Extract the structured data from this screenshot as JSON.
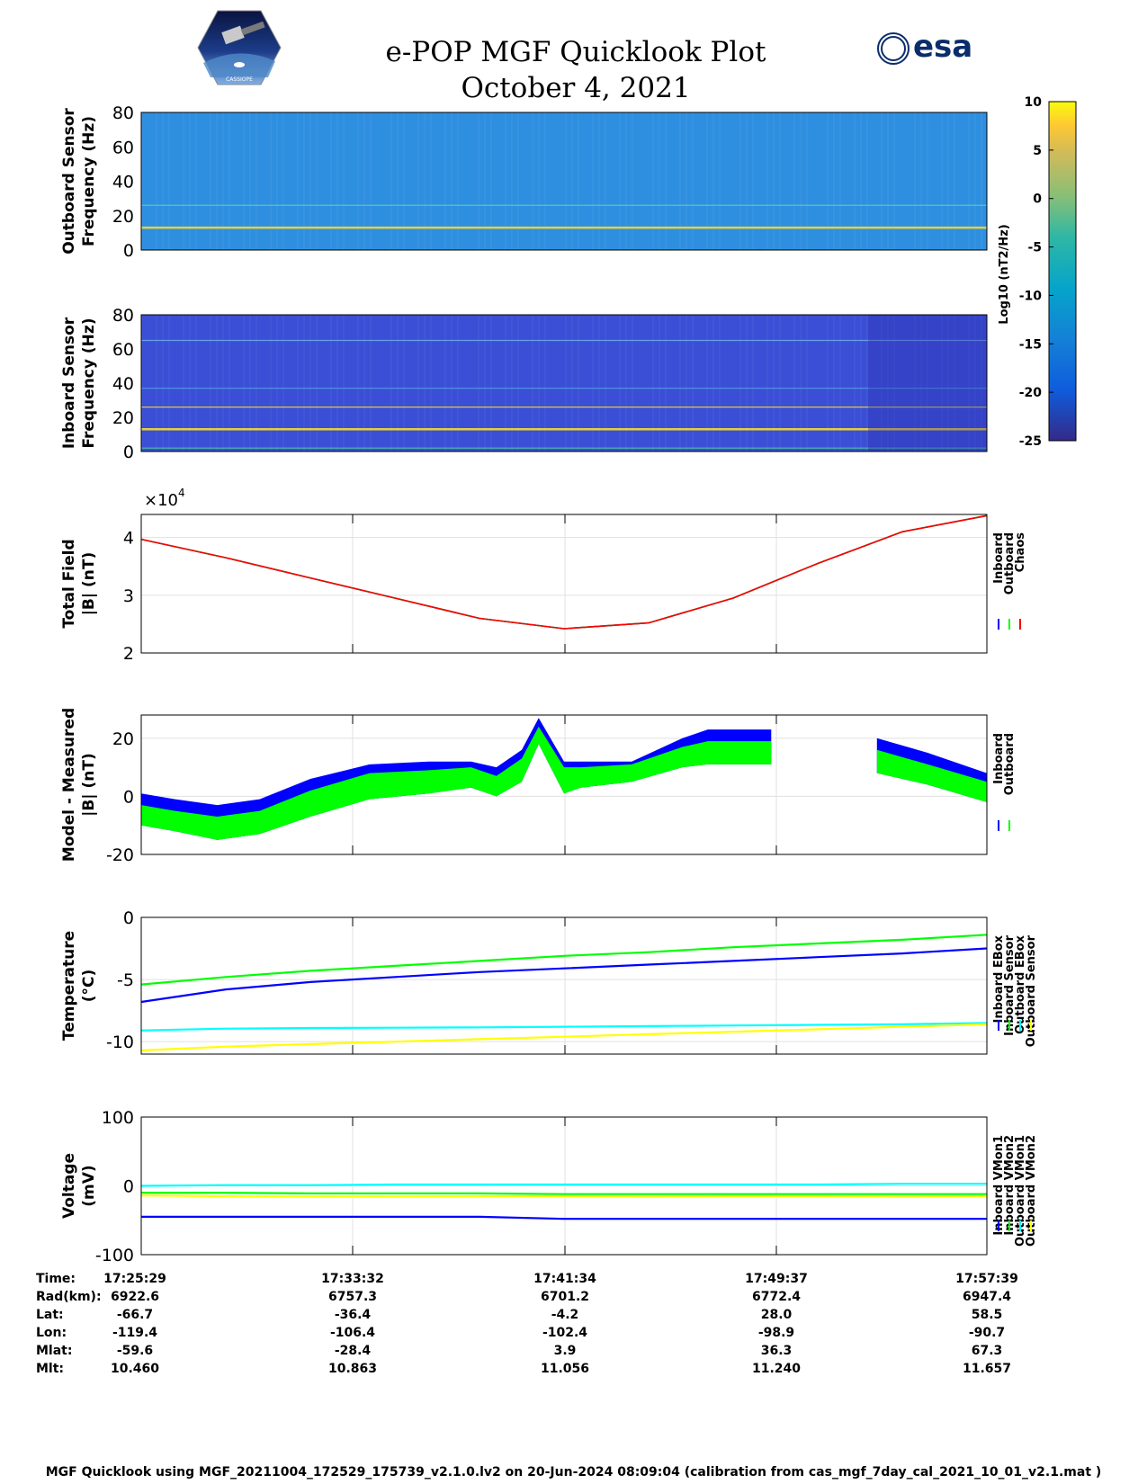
{
  "header": {
    "title_line1": "e-POP MGF Quicklook Plot",
    "title_line2": "October 4, 2021",
    "mission_logo_text": "CASSIOPE",
    "agency_logo_text": "esa"
  },
  "colorbar": {
    "label": "Log10 (nT2/Hz)",
    "ticks": [
      "10",
      "5",
      "0",
      "-5",
      "-10",
      "-15",
      "-20",
      "-25"
    ],
    "range": [
      -25,
      10
    ]
  },
  "footer": {
    "text": "MGF Quicklook using MGF_20211004_172529_175739_v2.1.0.lv2 on 20-Jun-2024 08:09:04 (calibration from cas_mgf_7day_cal_2021_10_01_v2.1.mat )"
  },
  "table": {
    "rows": [
      {
        "label": "Time:",
        "values": [
          "17:25:29",
          "17:33:32",
          "17:41:34",
          "17:49:37",
          "17:57:39"
        ]
      },
      {
        "label": "Rad(km):",
        "values": [
          "6922.6",
          "6757.3",
          "6701.2",
          "6772.4",
          "6947.4"
        ]
      },
      {
        "label": "Lat:",
        "values": [
          "-66.7",
          "-36.4",
          "-4.2",
          "28.0",
          "58.5"
        ]
      },
      {
        "label": "Lon:",
        "values": [
          "-119.4",
          "-106.4",
          "-102.4",
          "-98.9",
          "-90.7"
        ]
      },
      {
        "label": "Mlat:",
        "values": [
          "-59.6",
          "-28.4",
          "3.9",
          "36.3",
          "67.3"
        ]
      },
      {
        "label": "Mlt:",
        "values": [
          "10.460",
          "10.863",
          "11.056",
          "11.240",
          "11.657"
        ]
      }
    ]
  },
  "chart_data": [
    {
      "type": "heatmap",
      "ylabel": "Outboard Sensor\nFrequency (Hz)",
      "yticks": [
        "80",
        "60",
        "40",
        "20",
        "0"
      ],
      "ylim": [
        0,
        80
      ],
      "background": "#2e8fe0",
      "lines_hz": [
        13,
        26
      ],
      "line_colors": [
        "#e8cf3a",
        "#5fc5a8"
      ]
    },
    {
      "type": "heatmap",
      "ylabel": "Inboard Sensor\nFrequency (Hz)",
      "yticks": [
        "80",
        "60",
        "40",
        "20",
        "0"
      ],
      "ylim": [
        0,
        80
      ],
      "background": "#3a4fd6",
      "lines_hz": [
        13,
        26,
        2,
        65,
        37
      ],
      "line_colors": [
        "#e8cf3a",
        "#d8c850",
        "#48c0a0",
        "#6aa0e8",
        "#4f9ae0"
      ]
    },
    {
      "type": "line",
      "ylabel": "Total Field\n|B| (nT)",
      "exponent": "×10^4",
      "yticks": [
        "4",
        "3",
        "2"
      ],
      "ylim": [
        2,
        4.4
      ],
      "xfrac": [
        0,
        0.1,
        0.2,
        0.3,
        0.4,
        0.5,
        0.6,
        0.7,
        0.8,
        0.9,
        1
      ],
      "series": [
        {
          "name": "Inboard",
          "color": "#0000ff",
          "values": [
            3.97,
            3.65,
            3.3,
            2.95,
            2.6,
            2.42,
            2.52,
            2.95,
            3.55,
            4.1,
            4.38
          ]
        },
        {
          "name": "Outboard",
          "color": "#00ff00",
          "values": [
            3.97,
            3.65,
            3.3,
            2.95,
            2.6,
            2.42,
            2.52,
            2.95,
            3.55,
            4.1,
            4.38
          ]
        },
        {
          "name": "Chaos",
          "color": "#ff0000",
          "values": [
            3.97,
            3.65,
            3.3,
            2.95,
            2.6,
            2.42,
            2.52,
            2.95,
            3.55,
            4.1,
            4.38
          ]
        }
      ]
    },
    {
      "type": "area",
      "ylabel": "Model - Measured\n|B| (nT)",
      "yticks": [
        "20",
        "0",
        "-20"
      ],
      "ylim": [
        -20,
        28
      ],
      "series": [
        {
          "name": "Inboard",
          "color": "#0000ff",
          "upper": [
            [
              0,
              1
            ],
            [
              0.04,
              -1
            ],
            [
              0.09,
              -3
            ],
            [
              0.14,
              -1
            ],
            [
              0.2,
              6
            ],
            [
              0.27,
              11
            ],
            [
              0.34,
              12
            ],
            [
              0.39,
              12
            ],
            [
              0.42,
              10
            ],
            [
              0.45,
              16
            ],
            [
              0.47,
              27
            ],
            [
              0.5,
              12
            ],
            [
              0.52,
              12
            ],
            [
              0.58,
              12
            ],
            [
              0.64,
              20
            ],
            [
              0.67,
              23
            ],
            [
              0.7,
              23
            ],
            [
              0.745,
              23
            ],
            [
              0.745,
              null
            ],
            [
              0.87,
              null
            ],
            [
              0.87,
              20
            ],
            [
              0.93,
              15
            ],
            [
              1,
              8
            ]
          ],
          "lower": [
            [
              0,
              -10
            ],
            [
              0.04,
              -12
            ],
            [
              0.09,
              -15
            ],
            [
              0.14,
              -13
            ],
            [
              0.2,
              -7
            ],
            [
              0.27,
              -1
            ],
            [
              0.34,
              1
            ],
            [
              0.39,
              3
            ],
            [
              0.42,
              0
            ],
            [
              0.45,
              5
            ],
            [
              0.47,
              18
            ],
            [
              0.5,
              1
            ],
            [
              0.52,
              3
            ],
            [
              0.58,
              5
            ],
            [
              0.64,
              10
            ],
            [
              0.67,
              11
            ],
            [
              0.7,
              11
            ],
            [
              0.745,
              11
            ],
            [
              0.745,
              null
            ],
            [
              0.87,
              null
            ],
            [
              0.87,
              8
            ],
            [
              0.93,
              4
            ],
            [
              1,
              -2
            ]
          ]
        },
        {
          "name": "Outboard",
          "color": "#00ff00",
          "upper": [
            [
              0,
              -3
            ],
            [
              0.04,
              -5
            ],
            [
              0.09,
              -7
            ],
            [
              0.14,
              -5
            ],
            [
              0.2,
              2
            ],
            [
              0.27,
              8
            ],
            [
              0.34,
              9
            ],
            [
              0.39,
              10
            ],
            [
              0.42,
              7
            ],
            [
              0.45,
              13
            ],
            [
              0.47,
              24
            ],
            [
              0.5,
              10
            ],
            [
              0.52,
              10
            ],
            [
              0.58,
              11
            ],
            [
              0.64,
              17
            ],
            [
              0.67,
              19
            ],
            [
              0.7,
              19
            ],
            [
              0.745,
              19
            ],
            [
              0.745,
              null
            ],
            [
              0.87,
              null
            ],
            [
              0.87,
              16
            ],
            [
              0.93,
              11
            ],
            [
              1,
              5
            ]
          ],
          "lower": [
            [
              0,
              -10
            ],
            [
              0.04,
              -12
            ],
            [
              0.09,
              -15
            ],
            [
              0.14,
              -13
            ],
            [
              0.2,
              -7
            ],
            [
              0.27,
              -1
            ],
            [
              0.34,
              1
            ],
            [
              0.39,
              3
            ],
            [
              0.42,
              0
            ],
            [
              0.45,
              5
            ],
            [
              0.47,
              18
            ],
            [
              0.5,
              1
            ],
            [
              0.52,
              3
            ],
            [
              0.58,
              5
            ],
            [
              0.64,
              10
            ],
            [
              0.67,
              11
            ],
            [
              0.7,
              11
            ],
            [
              0.745,
              11
            ],
            [
              0.745,
              null
            ],
            [
              0.87,
              null
            ],
            [
              0.87,
              8
            ],
            [
              0.93,
              4
            ],
            [
              1,
              -2
            ]
          ]
        }
      ]
    },
    {
      "type": "line",
      "ylabel": "Temperature\n(°C)",
      "yticks": [
        "0",
        "-5",
        "-10"
      ],
      "ylim": [
        -11,
        0
      ],
      "xfrac": [
        0,
        0.1,
        0.2,
        0.3,
        0.4,
        0.5,
        0.6,
        0.7,
        0.8,
        0.9,
        1
      ],
      "series": [
        {
          "name": "Inboard EBox",
          "color": "#0000ff",
          "values": [
            -6.8,
            -5.8,
            -5.2,
            -4.8,
            -4.4,
            -4.1,
            -3.8,
            -3.5,
            -3.2,
            -2.9,
            -2.5
          ]
        },
        {
          "name": "Inboard Sensor",
          "color": "#00ff00",
          "values": [
            -5.4,
            -4.8,
            -4.3,
            -3.9,
            -3.5,
            -3.1,
            -2.8,
            -2.4,
            -2.1,
            -1.8,
            -1.4
          ]
        },
        {
          "name": "Outboard EBox",
          "color": "#00ffff",
          "values": [
            -9.1,
            -8.95,
            -8.9,
            -8.88,
            -8.85,
            -8.8,
            -8.75,
            -8.7,
            -8.65,
            -8.6,
            -8.5
          ]
        },
        {
          "name": "Outboard Sensor",
          "color": "#ffff00",
          "values": [
            -10.7,
            -10.4,
            -10.2,
            -10.0,
            -9.8,
            -9.6,
            -9.4,
            -9.2,
            -9.0,
            -8.8,
            -8.6
          ]
        }
      ]
    },
    {
      "type": "line",
      "ylabel": "Voltage\n(mV)",
      "yticks": [
        "100",
        "0",
        "-100"
      ],
      "ylim": [
        -100,
        100
      ],
      "xticks": [
        "17:25:29",
        "17:33:32",
        "17:41:34",
        "17:49:37",
        "17:57:39"
      ],
      "xfrac": [
        0,
        0.1,
        0.2,
        0.3,
        0.4,
        0.5,
        0.6,
        0.7,
        0.8,
        0.9,
        1
      ],
      "series": [
        {
          "name": "Inboard VMon1",
          "color": "#0000ff",
          "values": [
            -45,
            -45,
            -45,
            -45,
            -45,
            -48,
            -48,
            -48,
            -48,
            -48,
            -48
          ]
        },
        {
          "name": "Inboard VMon2",
          "color": "#00ff00",
          "values": [
            -10,
            -10,
            -11,
            -11,
            -11,
            -12,
            -12,
            -12,
            -12,
            -12,
            -12
          ]
        },
        {
          "name": "Outboard VMon1",
          "color": "#00ffff",
          "values": [
            0,
            1,
            1,
            2,
            2,
            2,
            2,
            2,
            2,
            3,
            3
          ]
        },
        {
          "name": "Outboard VMon2",
          "color": "#ffff00",
          "values": [
            -14,
            -15,
            -16,
            -16,
            -15,
            -15,
            -16,
            -15,
            -15,
            -16,
            -15
          ]
        }
      ]
    }
  ]
}
